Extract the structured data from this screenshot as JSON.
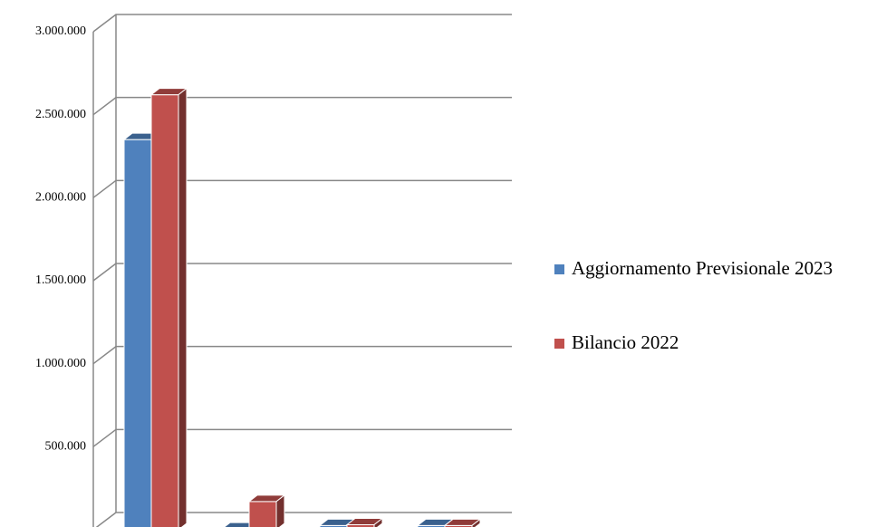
{
  "chart_data": {
    "type": "bar3d",
    "categories": [
      null,
      null,
      null,
      null
    ],
    "series": [
      {
        "name": "Aggiornamento Previsionale 2023",
        "color": "#4f81bd",
        "values": [
          2350000,
          5000,
          25000,
          25000
        ]
      },
      {
        "name": "Bilancio 2022",
        "color": "#c0504d",
        "values": [
          2620000,
          170000,
          30000,
          25000
        ]
      }
    ],
    "ylim": [
      0,
      3000000
    ],
    "yticks": [
      {
        "value": 0,
        "label": "-"
      },
      {
        "value": 500000,
        "label": "500.000"
      },
      {
        "value": 1000000,
        "label": "1.000.000"
      },
      {
        "value": 1500000,
        "label": "1.500.000"
      },
      {
        "value": 2000000,
        "label": "2.000.000"
      },
      {
        "value": 2500000,
        "label": "2.500.000"
      },
      {
        "value": 3000000,
        "label": "3.000.000"
      }
    ],
    "grid": true,
    "legend": "right"
  }
}
